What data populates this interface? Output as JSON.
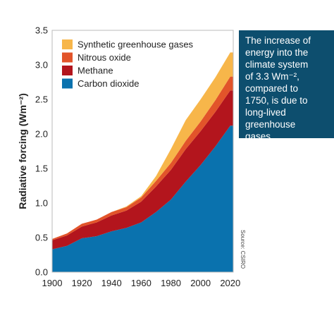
{
  "chart_data": {
    "type": "area",
    "stacked": true,
    "x": [
      1900,
      1910,
      1920,
      1930,
      1940,
      1950,
      1960,
      1970,
      1980,
      1990,
      2000,
      2010,
      2020
    ],
    "series": [
      {
        "name": "Carbon dioxide",
        "color": "#0a72ae",
        "values": [
          0.33,
          0.38,
          0.49,
          0.52,
          0.59,
          0.64,
          0.72,
          0.87,
          1.05,
          1.31,
          1.55,
          1.82,
          2.12
        ]
      },
      {
        "name": "Methane",
        "color": "#b3151d",
        "values": [
          0.13,
          0.15,
          0.17,
          0.2,
          0.23,
          0.25,
          0.3,
          0.37,
          0.43,
          0.47,
          0.49,
          0.5,
          0.51
        ]
      },
      {
        "name": "Nitrous oxide",
        "color": "#e2542a",
        "values": [
          0.02,
          0.03,
          0.04,
          0.04,
          0.05,
          0.05,
          0.06,
          0.08,
          0.1,
          0.12,
          0.14,
          0.17,
          0.2
        ]
      },
      {
        "name": "Synthetic greenhouse gases",
        "color": "#f7b64a",
        "values": [
          0.0,
          0.0,
          0.0,
          0.0,
          0.0,
          0.01,
          0.02,
          0.07,
          0.2,
          0.3,
          0.32,
          0.33,
          0.35
        ]
      }
    ],
    "legend_order": [
      "Synthetic greenhouse gases",
      "Nitrous oxide",
      "Methane",
      "Carbon dioxide"
    ],
    "legend_placement": "top-left",
    "xlim": [
      1900,
      2022
    ],
    "ylim": [
      0,
      3.5
    ],
    "xticks": [
      1900,
      1920,
      1940,
      1960,
      1980,
      2000,
      2020
    ],
    "yticks": [
      0.0,
      0.5,
      1.0,
      1.5,
      2.0,
      2.5,
      3.0,
      3.5
    ],
    "ytick_labels": [
      "0.0",
      "0.5",
      "1.0",
      "1.5",
      "2.0",
      "2.5",
      "3.0",
      "3.5"
    ],
    "ylabel": "Radiative forcing (Wm⁻²)",
    "xlabel": "",
    "grid": false,
    "source": "Source: CSIRO"
  },
  "callout": {
    "lines": [
      "The increase of",
      "energy into the",
      "climate system",
      "of 3.3 Wm⁻²,",
      "compared to",
      "1750, is due to",
      "long-lived",
      "greenhouse",
      "gases."
    ],
    "background": "#0d4e6e"
  }
}
